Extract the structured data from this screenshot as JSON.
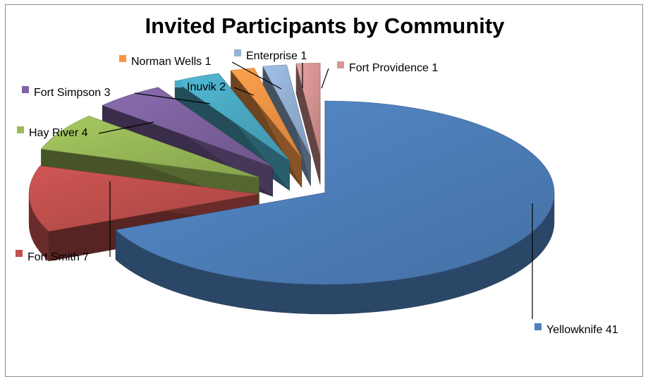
{
  "chart_data": {
    "type": "pie",
    "style": "3d-exploded",
    "title": "Invited Participants by Community",
    "legend": "none",
    "data_labels": "category-name-and-value-with-swatch",
    "slices": [
      {
        "label": "Yellowknife",
        "value": 41,
        "color": "#4f81bd",
        "display": "Yellowknife 41"
      },
      {
        "label": "Fort Smith",
        "value": 7,
        "color": "#c0504d",
        "display": "Fort Smith 7"
      },
      {
        "label": "Hay River",
        "value": 4,
        "color": "#9bbb59",
        "display": "Hay River 4"
      },
      {
        "label": "Fort Simpson",
        "value": 3,
        "color": "#8064a2",
        "display": "Fort Simpson 3"
      },
      {
        "label": "Inuvik",
        "value": 2,
        "color": "#4bacc6",
        "display": "Inuvik 2"
      },
      {
        "label": "Norman Wells",
        "value": 1,
        "color": "#f79646",
        "display": "Norman Wells 1"
      },
      {
        "label": "Enterprise",
        "value": 1,
        "color": "#95b3d7",
        "display": "Enterprise 1"
      },
      {
        "label": "Fort Providence",
        "value": 1,
        "color": "#d99694",
        "display": "Fort Providence 1"
      }
    ]
  }
}
